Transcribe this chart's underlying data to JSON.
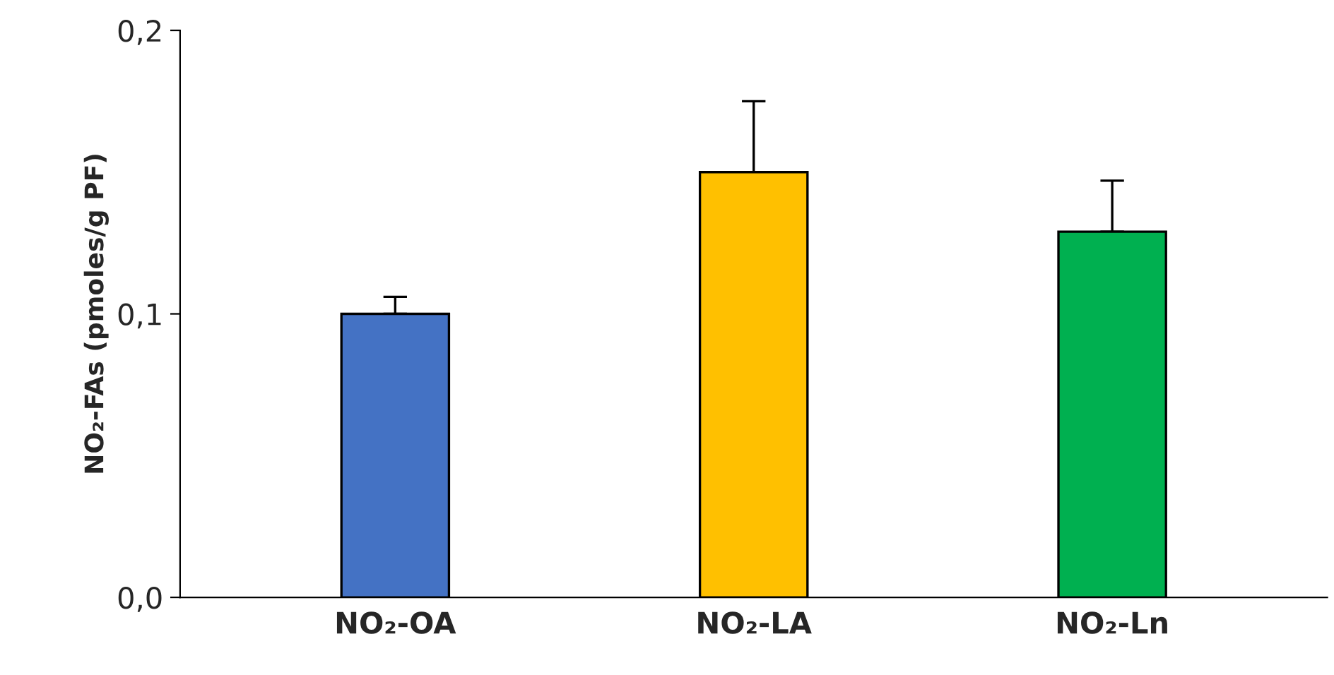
{
  "chart_data": {
    "type": "bar",
    "ylabel": "NO₂-FAs (pmoles/g PF)",
    "categories": [
      "NO₂-OA",
      "NO₂-LA",
      "NO₂-Ln"
    ],
    "values": [
      0.1,
      0.15,
      0.129
    ],
    "colors": [
      "#4472c4",
      "#ffc000",
      "#00b050"
    ],
    "errors": [
      [
        0.1,
        0.106
      ],
      [
        0.15,
        0.175
      ],
      [
        0.129,
        0.147
      ]
    ],
    "ylim": [
      0,
      0.2
    ],
    "yticks": [
      {
        "value": 0,
        "label": "0,0"
      },
      {
        "value": 0.1,
        "label": "0,1"
      },
      {
        "value": 0.2,
        "label": "0,2"
      }
    ],
    "grid": false
  }
}
